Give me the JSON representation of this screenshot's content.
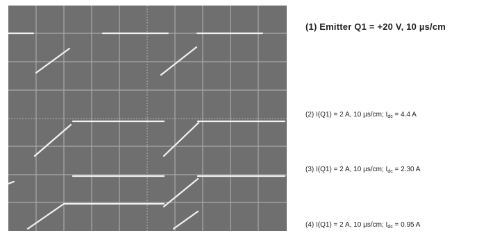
{
  "captions": [
    {
      "text": "(1) Emitter Q1 = +20 V, 10 µs/cm"
    },
    {
      "prefix": "(2) I(Q1) = 2 A, 10 µs/cm; I",
      "sub": "dc",
      "suffix": " = 4.4 A"
    },
    {
      "prefix": "(3) I(Q1) = 2 A, 10 µs/cm; I",
      "sub": "dc",
      "suffix": " = 2.30 A"
    },
    {
      "prefix": "(4) I(Q1) = 2 A, 10 µs/cm; I",
      "sub": "dc",
      "suffix": " = 0.95 A"
    }
  ]
}
